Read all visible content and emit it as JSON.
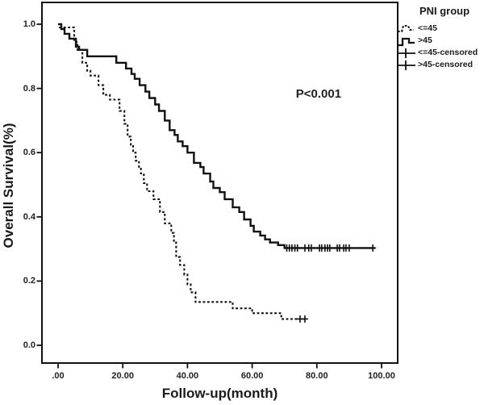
{
  "figure": {
    "y_axis_title": "Overall Survival(%)",
    "x_axis_title": "Follow-up(month)",
    "p_value_label": "P<0.001"
  },
  "legend": {
    "title": "PNI group",
    "items": [
      {
        "label": "<=45",
        "sample": "dashed-line"
      },
      {
        "label": ">45",
        "sample": "solid-line"
      },
      {
        "label": "<=45-censored",
        "sample": "plus-marker"
      },
      {
        "label": ">45-censored",
        "sample": "plus-marker"
      }
    ]
  },
  "chart_data": {
    "type": "line",
    "subtype": "kaplan_meier_step",
    "title": "",
    "xlabel": "Follow-up(month)",
    "ylabel": "Overall Survival(%)",
    "xlim": [
      -5,
      105
    ],
    "ylim": [
      -0.05,
      1.07
    ],
    "grid": false,
    "legend_position": "top-right-outside",
    "annotation": {
      "text": "P<0.001",
      "x_month": 73.5,
      "y_survival": 0.78
    },
    "x_ticks": [
      {
        "value": 0,
        "label": ".00"
      },
      {
        "value": 20,
        "label": "20.00"
      },
      {
        "value": 40,
        "label": "40.00"
      },
      {
        "value": 60,
        "label": "60.00"
      },
      {
        "value": 80,
        "label": "80.00"
      },
      {
        "value": 100,
        "label": "100.00"
      }
    ],
    "y_ticks": [
      {
        "value": 0.0,
        "label": "0.0"
      },
      {
        "value": 0.2,
        "label": "0.2"
      },
      {
        "value": 0.4,
        "label": "0.4"
      },
      {
        "value": 0.6,
        "label": "0.6"
      },
      {
        "value": 0.8,
        "label": "0.8"
      },
      {
        "value": 1.0,
        "label": "1.0"
      }
    ],
    "series": [
      {
        "name": "<=45",
        "line_style": "dashed",
        "color": "#111111",
        "steps": [
          [
            0,
            1.0
          ],
          [
            0.5,
            0.99
          ],
          [
            5,
            0.945
          ],
          [
            6,
            0.92
          ],
          [
            7.5,
            0.88
          ],
          [
            9,
            0.855
          ],
          [
            10,
            0.84
          ],
          [
            12.5,
            0.81
          ],
          [
            14,
            0.78
          ],
          [
            16,
            0.765
          ],
          [
            19,
            0.73
          ],
          [
            20.5,
            0.69
          ],
          [
            21.5,
            0.65
          ],
          [
            22.5,
            0.625
          ],
          [
            23.2,
            0.6
          ],
          [
            24,
            0.575
          ],
          [
            25,
            0.55
          ],
          [
            25.6,
            0.535
          ],
          [
            26.5,
            0.505
          ],
          [
            27.5,
            0.48
          ],
          [
            29.5,
            0.455
          ],
          [
            31.5,
            0.415
          ],
          [
            33,
            0.38
          ],
          [
            35,
            0.35
          ],
          [
            35.8,
            0.32
          ],
          [
            36.5,
            0.275
          ],
          [
            37.7,
            0.25
          ],
          [
            39,
            0.22
          ],
          [
            40,
            0.19
          ],
          [
            41,
            0.165
          ],
          [
            42.5,
            0.135
          ],
          [
            54,
            0.115
          ],
          [
            60,
            0.1
          ],
          [
            69,
            0.082
          ]
        ],
        "end_month": 77,
        "censored_months": [
          74.8,
          76.3
        ]
      },
      {
        "name": ">45",
        "line_style": "solid",
        "color": "#111111",
        "steps": [
          [
            0,
            1.0
          ],
          [
            1,
            0.985
          ],
          [
            2,
            0.97
          ],
          [
            3.5,
            0.955
          ],
          [
            5.5,
            0.93
          ],
          [
            6.5,
            0.92
          ],
          [
            9,
            0.9
          ],
          [
            18,
            0.88
          ],
          [
            21,
            0.862
          ],
          [
            22.7,
            0.845
          ],
          [
            23.7,
            0.83
          ],
          [
            25.2,
            0.81
          ],
          [
            27,
            0.79
          ],
          [
            28.2,
            0.77
          ],
          [
            30,
            0.75
          ],
          [
            31.2,
            0.73
          ],
          [
            33,
            0.7
          ],
          [
            34.5,
            0.67
          ],
          [
            36,
            0.655
          ],
          [
            37,
            0.635
          ],
          [
            38.5,
            0.62
          ],
          [
            40,
            0.6
          ],
          [
            42,
            0.568
          ],
          [
            44,
            0.555
          ],
          [
            45,
            0.535
          ],
          [
            47,
            0.51
          ],
          [
            48,
            0.49
          ],
          [
            50,
            0.477
          ],
          [
            51.5,
            0.455
          ],
          [
            54,
            0.43
          ],
          [
            56,
            0.415
          ],
          [
            57.5,
            0.392
          ],
          [
            59.5,
            0.372
          ],
          [
            60.5,
            0.354
          ],
          [
            62.5,
            0.342
          ],
          [
            64,
            0.33
          ],
          [
            65.5,
            0.32
          ],
          [
            68,
            0.312
          ],
          [
            70,
            0.303
          ]
        ],
        "end_month": 98,
        "censored_months": [
          70.7,
          71.5,
          72.3,
          73.2,
          74,
          76.3,
          77.5,
          78.3,
          80.8,
          81.5,
          82.5,
          83.3,
          84,
          86.3,
          87,
          88.3,
          89,
          90,
          97.3
        ]
      }
    ]
  }
}
